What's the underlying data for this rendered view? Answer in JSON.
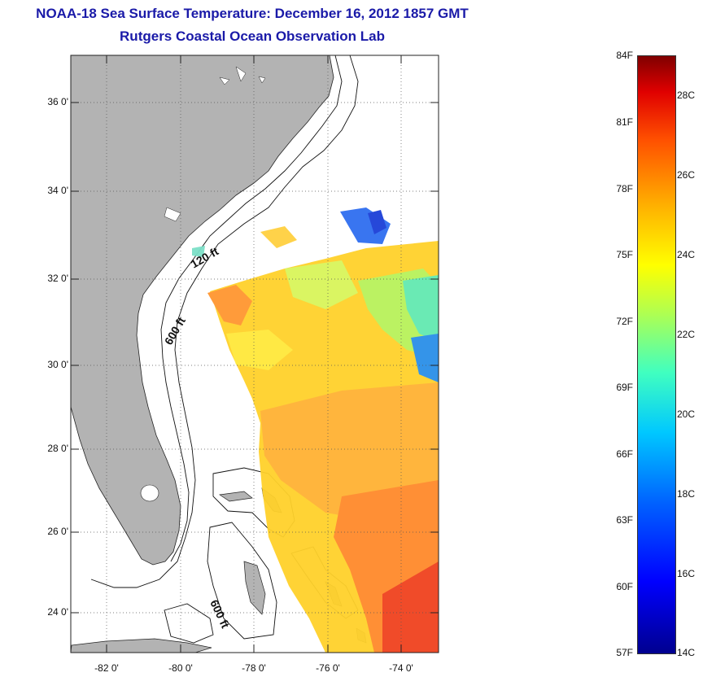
{
  "title": {
    "line1": "NOAA-18 Sea Surface Temperature:  December 16, 2012 1857 GMT",
    "line2": "Rutgers Coastal Ocean Observation Lab"
  },
  "map": {
    "lat_labels": [
      "36 0'",
      "34 0'",
      "32 0'",
      "30 0'",
      "28 0'",
      "26 0'",
      "24 0'"
    ],
    "lon_labels": [
      "-82 0'",
      "-80 0'",
      "-78 0'",
      "-76 0'",
      "-74 0'"
    ],
    "contours": {
      "c120": "120 ft",
      "c600a": "600 ft",
      "c600b": "600 ft"
    },
    "colors": {
      "land": "#b3b3b3",
      "ocean": "#ffffff",
      "grid": "#555555"
    }
  },
  "colorbar": {
    "fahrenheit": [
      "84F",
      "81F",
      "78F",
      "75F",
      "72F",
      "69F",
      "66F",
      "63F",
      "60F",
      "57F"
    ],
    "celsius": [
      "28C",
      "26C",
      "24C",
      "22C",
      "20C",
      "18C",
      "16C",
      "14C"
    ]
  }
}
